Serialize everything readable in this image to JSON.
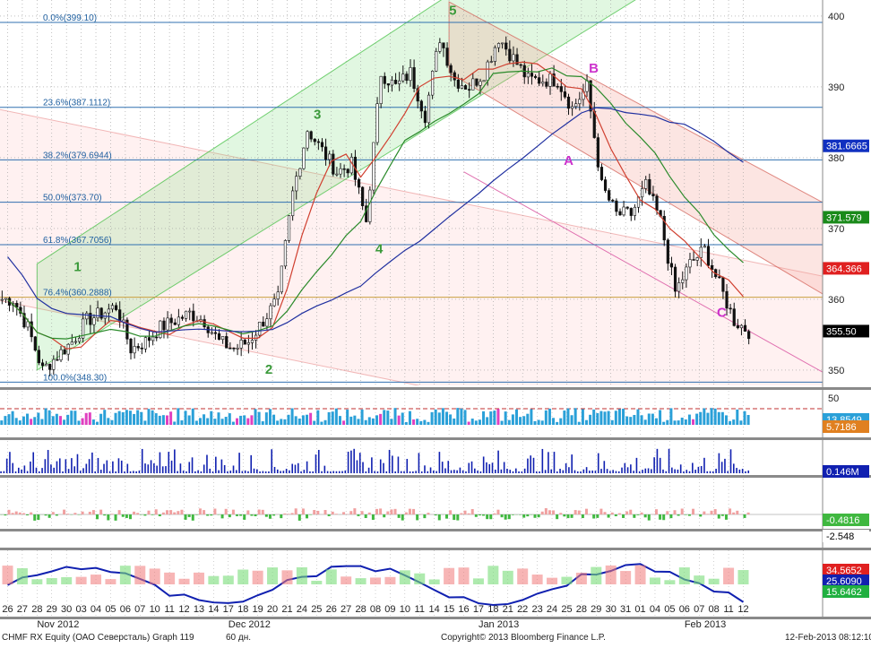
{
  "footer": {
    "security": "CHMF RX Equity (ОАО Северсталь) Graph 119",
    "period": "60 дн.",
    "copyright": "Copyright© 2013 Bloomberg Finance L.P.",
    "timestamp": "12-Feb-2013 08:12:10"
  },
  "chart_data": [
    {
      "type": "candlestick",
      "panel": "price",
      "ylim": [
        345,
        401
      ],
      "y_ticks": [
        350,
        360,
        370,
        380,
        390,
        400
      ],
      "x_tick_labels": [
        "26",
        "27",
        "28",
        "29",
        "30",
        "03",
        "04",
        "05",
        "06",
        "07",
        "10",
        "11",
        "12",
        "13",
        "14",
        "17",
        "18",
        "19",
        "20",
        "21",
        "24",
        "25",
        "26",
        "27",
        "28",
        "08",
        "09",
        "10",
        "11",
        "14",
        "15",
        "16",
        "17",
        "18",
        "21",
        "22",
        "23",
        "24",
        "25",
        "28",
        "29",
        "30",
        "31",
        "01",
        "04",
        "05",
        "06",
        "07",
        "08",
        "11",
        "12"
      ],
      "months": [
        {
          "label": "Nov 2012",
          "at": 2
        },
        {
          "label": "Dec 2012",
          "at": 15
        },
        {
          "label": "Jan 2013",
          "at": 32
        },
        {
          "label": "Feb 2013",
          "at": 46
        }
      ],
      "fibonacci": [
        {
          "label": "0.0%(399.10)",
          "value": 399.1
        },
        {
          "label": "23.6%(387.1112)",
          "value": 387.1112
        },
        {
          "label": "38.2%(379.6944)",
          "value": 379.6944
        },
        {
          "label": "50.0%(373.70)",
          "value": 373.7
        },
        {
          "label": "61.8%(367.7056)",
          "value": 367.7056
        },
        {
          "label": "76.4%(360.2888)",
          "value": 360.2888
        },
        {
          "label": "100.0%(348.30)",
          "value": 348.3
        }
      ],
      "close": [
        360,
        356,
        350,
        352,
        354,
        357,
        358,
        359,
        353,
        354,
        356,
        357,
        358,
        357,
        354,
        353,
        354,
        357,
        360,
        375,
        384,
        381,
        378,
        379,
        371,
        392,
        390,
        392,
        386,
        397,
        391,
        390,
        392,
        397,
        394,
        391,
        391,
        391,
        387,
        390,
        376,
        372,
        372,
        376,
        371,
        361,
        365,
        367,
        362,
        357,
        355.5
      ],
      "value_labels": [
        {
          "text": "381.6665",
          "value": 381.6665,
          "color": "#1030c0"
        },
        {
          "text": "371.579",
          "value": 371.579,
          "color": "#1a8a1a"
        },
        {
          "text": "364.366",
          "value": 364.366,
          "color": "#e02020"
        },
        {
          "text": "355.50",
          "value": 355.5,
          "color": "#000000"
        }
      ],
      "wave_labels": [
        {
          "text": "1",
          "x": 4.5,
          "y": 364,
          "color": "#3a9a3a"
        },
        {
          "text": "2",
          "x": 17.5,
          "y": 349.5,
          "color": "#3a9a3a"
        },
        {
          "text": "3",
          "x": 20.8,
          "y": 385.5,
          "color": "#3a9a3a"
        },
        {
          "text": "4",
          "x": 25.0,
          "y": 366.5,
          "color": "#3a9a3a"
        },
        {
          "text": "5",
          "x": 30.0,
          "y": 400.2,
          "color": "#3a9a3a"
        },
        {
          "text": "A",
          "x": 37.8,
          "y": 379.0,
          "color": "#cc33cc"
        },
        {
          "text": "B",
          "x": 39.5,
          "y": 392.0,
          "color": "#cc33cc"
        },
        {
          "text": "C",
          "x": 48.2,
          "y": 357.5,
          "color": "#cc33cc"
        }
      ]
    },
    {
      "type": "bar",
      "panel": "indicator-1",
      "y_ticks": [
        50
      ],
      "value_labels": [
        {
          "text": "13.8549"
        },
        {
          "text": "5.7186"
        }
      ]
    },
    {
      "type": "bar",
      "panel": "volume",
      "value_labels": [
        {
          "text": "0.146M"
        }
      ]
    },
    {
      "type": "bar",
      "panel": "macd",
      "value_labels": [
        {
          "text": "-0.4816"
        },
        {
          "text": "-2.548"
        }
      ]
    },
    {
      "type": "area",
      "panel": "dmi",
      "value_labels": [
        {
          "text": "34.5652"
        },
        {
          "text": "25.6090"
        },
        {
          "text": "15.6462"
        }
      ]
    }
  ]
}
